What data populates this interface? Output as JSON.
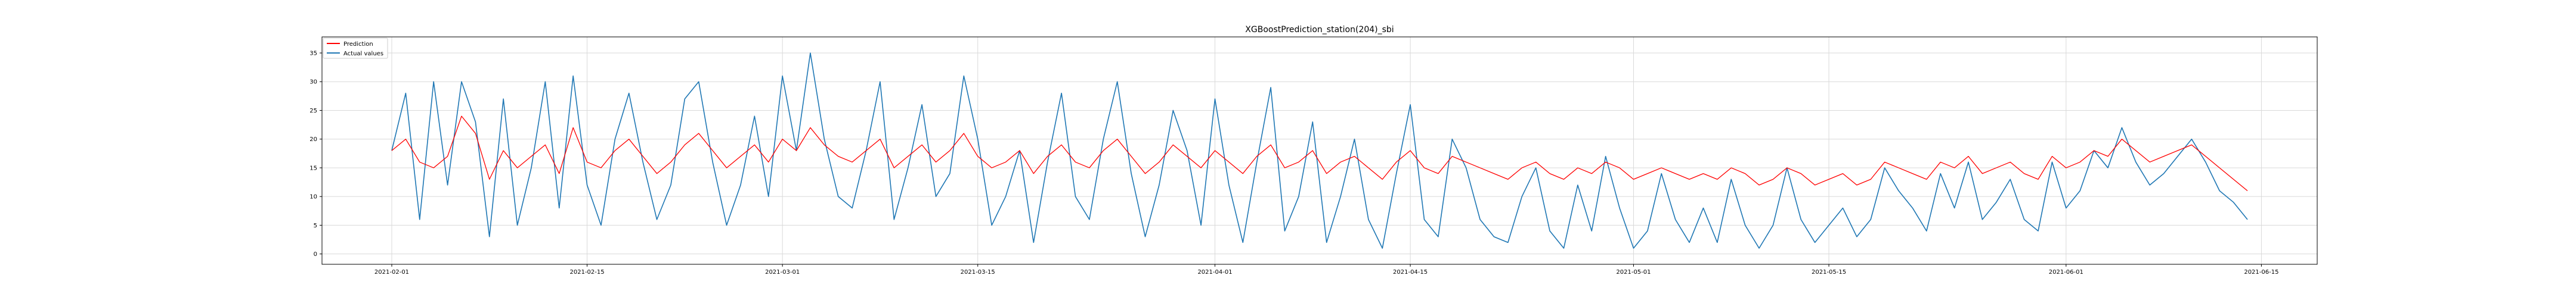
{
  "chart_data": {
    "type": "line",
    "title": "XGBoostPrediction_station(204)_sbi",
    "xlabel": "",
    "ylabel": "",
    "x_range": [
      "2021-01-27",
      "2021-06-19"
    ],
    "ylim": [
      -1.8,
      37.8
    ],
    "grid": true,
    "legend_position": "top-left",
    "x_ticks": [
      "2021-02-01",
      "2021-02-15",
      "2021-03-01",
      "2021-03-15",
      "2021-04-01",
      "2021-04-15",
      "2021-05-01",
      "2021-05-15",
      "2021-06-01",
      "2021-06-15"
    ],
    "y_ticks": [
      0,
      5,
      10,
      15,
      20,
      25,
      30,
      35
    ],
    "colors": {
      "Prediction": "#ff0000",
      "Actual values": "#1f77b4",
      "grid": "#d9d9d9"
    },
    "series": [
      {
        "name": "Prediction",
        "x_start": "2021-02-01",
        "step_days": 1,
        "values": [
          18,
          20,
          16,
          15,
          17,
          24,
          21,
          13,
          18,
          15,
          17,
          19,
          14,
          22,
          16,
          15,
          18,
          20,
          17,
          14,
          16,
          19,
          21,
          18,
          15,
          17,
          19,
          16,
          20,
          18,
          22,
          19,
          17,
          16,
          18,
          20,
          15,
          17,
          19,
          16,
          18,
          21,
          17,
          15,
          16,
          18,
          14,
          17,
          19,
          16,
          15,
          18,
          20,
          17,
          14,
          16,
          19,
          17,
          15,
          18,
          16,
          14,
          17,
          19,
          15,
          16,
          18,
          14,
          16,
          17,
          15,
          13,
          16,
          18,
          15,
          14,
          17,
          16,
          15,
          14,
          13,
          15,
          16,
          14,
          13,
          15,
          14,
          16,
          15,
          13,
          14,
          15,
          14,
          13,
          14,
          13,
          15,
          14,
          12,
          13,
          15,
          14,
          12,
          13,
          14,
          12,
          13,
          16,
          15,
          14,
          13,
          16,
          15,
          17,
          14,
          15,
          16,
          14,
          13,
          17,
          15,
          16,
          18,
          17,
          20,
          18,
          16,
          17,
          18,
          19,
          17,
          15,
          13,
          11
        ]
      },
      {
        "name": "Actual values",
        "x_start": "2021-02-01",
        "step_days": 1,
        "values": [
          18,
          28,
          6,
          30,
          12,
          30,
          23,
          3,
          27,
          5,
          15,
          30,
          8,
          31,
          12,
          5,
          20,
          28,
          16,
          6,
          12,
          27,
          30,
          16,
          5,
          12,
          24,
          10,
          31,
          18,
          35,
          20,
          10,
          8,
          18,
          30,
          6,
          15,
          26,
          10,
          14,
          31,
          20,
          5,
          10,
          18,
          2,
          16,
          28,
          10,
          6,
          20,
          30,
          14,
          3,
          12,
          25,
          18,
          5,
          27,
          12,
          2,
          16,
          29,
          4,
          10,
          23,
          2,
          10,
          20,
          6,
          1,
          14,
          26,
          6,
          3,
          20,
          15,
          6,
          3,
          2,
          10,
          15,
          4,
          1,
          12,
          4,
          17,
          8,
          1,
          4,
          14,
          6,
          2,
          8,
          2,
          13,
          5,
          1,
          5,
          15,
          6,
          2,
          5,
          8,
          3,
          6,
          15,
          11,
          8,
          4,
          14,
          8,
          16,
          6,
          9,
          13,
          6,
          4,
          16,
          8,
          11,
          18,
          15,
          22,
          16,
          12,
          14,
          17,
          20,
          16,
          11,
          9,
          6
        ]
      }
    ]
  }
}
